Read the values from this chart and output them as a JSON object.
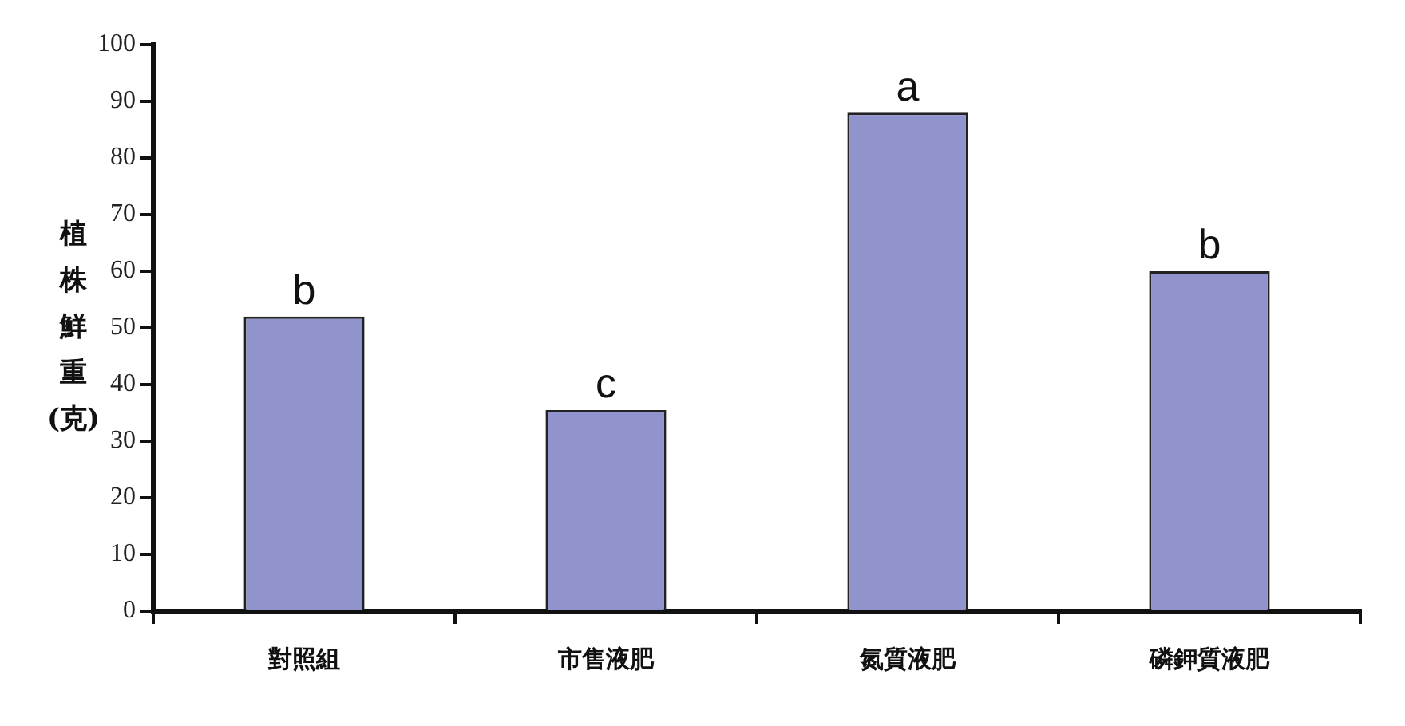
{
  "chart_data": {
    "type": "bar",
    "ylabel": "植株鮮重(克)",
    "categories": [
      "對照組",
      "市售液肥",
      "氮質液肥",
      "磷鉀質液肥"
    ],
    "values": [
      52,
      35.5,
      88,
      60
    ],
    "color": "#9093cc",
    "ylim": [
      0,
      100
    ],
    "yticks": [
      0,
      10,
      20,
      30,
      40,
      50,
      60,
      70,
      80,
      90,
      100
    ],
    "grid": false,
    "legend": false,
    "annotations": [
      {
        "text": "b",
        "x": "對照組",
        "y": 52
      },
      {
        "text": "c",
        "x": "市售液肥",
        "y": 35.5
      },
      {
        "text": "a",
        "x": "氮質液肥",
        "y": 88
      },
      {
        "text": "b",
        "x": "磷鉀質液肥",
        "y": 60
      }
    ]
  }
}
